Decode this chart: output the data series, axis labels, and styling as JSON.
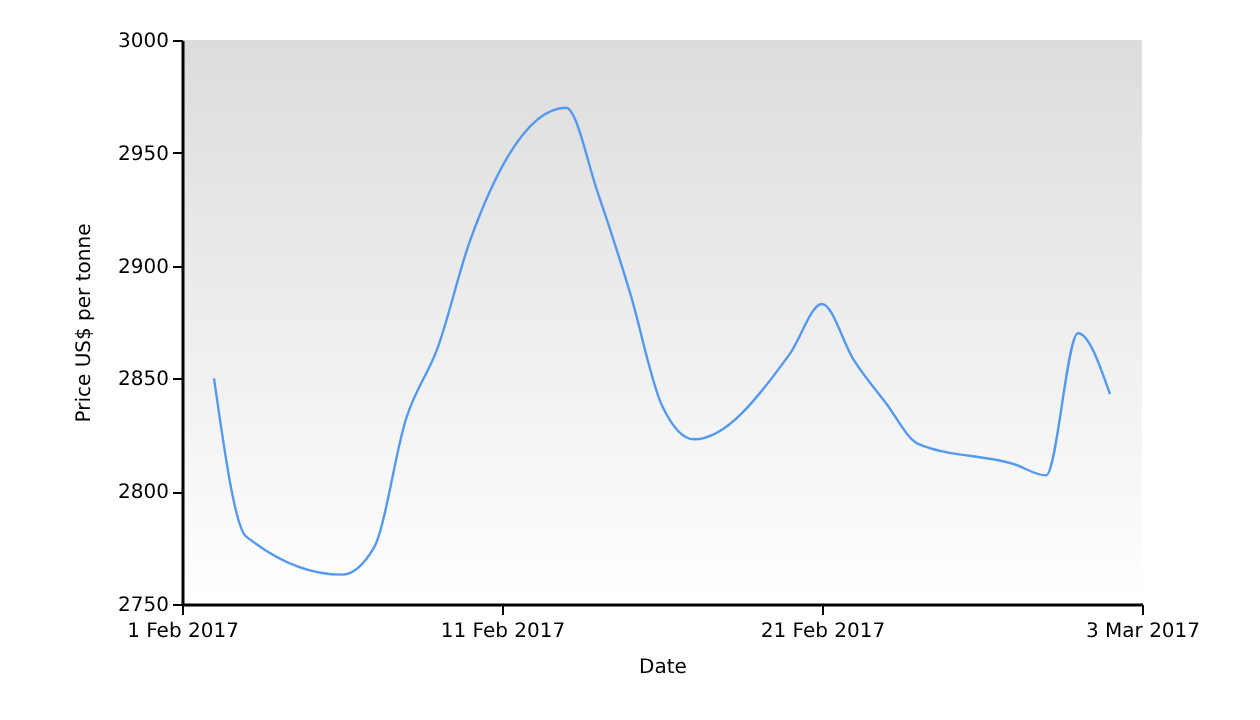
{
  "chart_data": {
    "type": "line",
    "xlabel": "Date",
    "ylabel": "Price US$ per tonne",
    "x": [
      "2017-02-02",
      "2017-02-03",
      "2017-02-06",
      "2017-02-07",
      "2017-02-08",
      "2017-02-09",
      "2017-02-10",
      "2017-02-13",
      "2017-02-14",
      "2017-02-15",
      "2017-02-16",
      "2017-02-17",
      "2017-02-20",
      "2017-02-21",
      "2017-02-22",
      "2017-02-23",
      "2017-02-24",
      "2017-02-27",
      "2017-02-28",
      "2017-03-01",
      "2017-03-02"
    ],
    "series": [
      {
        "color": "#5599ee",
        "values": [
          2850,
          2780,
          2763,
          2775,
          2832,
          2864,
          2911,
          2970,
          2932,
          2888,
          2838,
          2823,
          2861,
          2883,
          2858,
          2839,
          2821,
          2812,
          2807,
          2870,
          2843
        ]
      }
    ],
    "xlim": [
      "2017-02-01",
      "2017-03-03"
    ],
    "xticks": [
      {
        "value": "2017-02-01",
        "label": "1 Feb 2017"
      },
      {
        "value": "2017-02-11",
        "label": "11 Feb 2017"
      },
      {
        "value": "2017-02-21",
        "label": "21 Feb 2017"
      },
      {
        "value": "2017-03-03",
        "label": "3 Mar 2017"
      }
    ],
    "ylim": [
      2750,
      3000
    ],
    "yticks": [
      2750,
      2800,
      2850,
      2900,
      2950,
      3000
    ],
    "grid": false
  }
}
